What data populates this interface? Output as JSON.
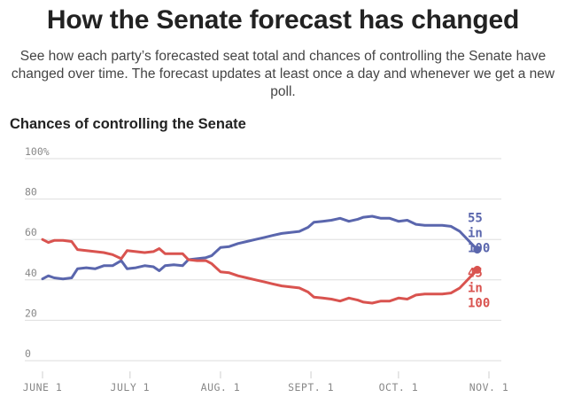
{
  "header": {
    "title": "How the Senate forecast has changed",
    "subtitle": "See how each party’s forecasted seat total and chances of controlling the Senate have changed over time. The forecast updates at least once a day and whenever we get a new poll."
  },
  "chart_data": {
    "type": "line",
    "title": "Chances of controlling the Senate",
    "xlabel": "",
    "ylabel": "",
    "ylim": [
      0,
      100
    ],
    "y_ticks": [
      "0",
      "20",
      "40",
      "60",
      "80",
      "100%"
    ],
    "y_tick_values": [
      0,
      20,
      40,
      60,
      80,
      100
    ],
    "x_ticks": [
      "JUNE 1",
      "JULY 1",
      "AUG. 1",
      "SEPT. 1",
      "OCT. 1",
      "NOV. 1"
    ],
    "x_tick_dates": [
      "2018-06-01",
      "2018-07-01",
      "2018-08-01",
      "2018-09-01",
      "2018-10-01",
      "2018-11-01"
    ],
    "grid": true,
    "series": [
      {
        "color": "#5a66ad",
        "end_label": [
          "55",
          "in",
          "100"
        ],
        "points": [
          [
            "2018-06-01",
            40.5
          ],
          [
            "2018-06-03",
            42
          ],
          [
            "2018-06-05",
            41
          ],
          [
            "2018-06-08",
            40.5
          ],
          [
            "2018-06-11",
            41
          ],
          [
            "2018-06-13",
            45.5
          ],
          [
            "2018-06-16",
            46
          ],
          [
            "2018-06-19",
            45.5
          ],
          [
            "2018-06-22",
            47
          ],
          [
            "2018-06-25",
            47
          ],
          [
            "2018-06-28",
            49.5
          ],
          [
            "2018-06-30",
            45.5
          ],
          [
            "2018-07-03",
            46
          ],
          [
            "2018-07-06",
            47
          ],
          [
            "2018-07-09",
            46.5
          ],
          [
            "2018-07-11",
            44.5
          ],
          [
            "2018-07-13",
            47
          ],
          [
            "2018-07-16",
            47.5
          ],
          [
            "2018-07-19",
            47
          ],
          [
            "2018-07-21",
            50
          ],
          [
            "2018-07-24",
            50.5
          ],
          [
            "2018-07-27",
            51
          ],
          [
            "2018-07-29",
            52
          ],
          [
            "2018-08-01",
            56
          ],
          [
            "2018-08-04",
            56.5
          ],
          [
            "2018-08-07",
            58
          ],
          [
            "2018-08-10",
            59
          ],
          [
            "2018-08-13",
            60
          ],
          [
            "2018-08-16",
            61
          ],
          [
            "2018-08-19",
            62
          ],
          [
            "2018-08-22",
            63
          ],
          [
            "2018-08-25",
            63.5
          ],
          [
            "2018-08-28",
            64
          ],
          [
            "2018-08-31",
            66
          ],
          [
            "2018-09-02",
            68.5
          ],
          [
            "2018-09-05",
            69
          ],
          [
            "2018-09-08",
            69.5
          ],
          [
            "2018-09-11",
            70.5
          ],
          [
            "2018-09-14",
            69
          ],
          [
            "2018-09-17",
            70
          ],
          [
            "2018-09-19",
            71
          ],
          [
            "2018-09-22",
            71.5
          ],
          [
            "2018-09-25",
            70.5
          ],
          [
            "2018-09-28",
            70.5
          ],
          [
            "2018-10-01",
            69
          ],
          [
            "2018-10-04",
            69.5
          ],
          [
            "2018-10-07",
            67.5
          ],
          [
            "2018-10-10",
            67
          ],
          [
            "2018-10-13",
            67
          ],
          [
            "2018-10-16",
            67
          ],
          [
            "2018-10-19",
            66.5
          ],
          [
            "2018-10-22",
            64
          ],
          [
            "2018-10-24",
            61
          ],
          [
            "2018-10-26",
            58
          ],
          [
            "2018-10-28",
            55
          ]
        ]
      },
      {
        "color": "#d9534f",
        "end_label": [
          "45",
          "in",
          "100"
        ],
        "points": [
          [
            "2018-06-01",
            60
          ],
          [
            "2018-06-03",
            58.5
          ],
          [
            "2018-06-05",
            59.5
          ],
          [
            "2018-06-08",
            59.5
          ],
          [
            "2018-06-11",
            59
          ],
          [
            "2018-06-13",
            55
          ],
          [
            "2018-06-16",
            54.5
          ],
          [
            "2018-06-19",
            54
          ],
          [
            "2018-06-22",
            53.5
          ],
          [
            "2018-06-25",
            52.5
          ],
          [
            "2018-06-28",
            50.5
          ],
          [
            "2018-06-30",
            54.5
          ],
          [
            "2018-07-03",
            54
          ],
          [
            "2018-07-06",
            53.5
          ],
          [
            "2018-07-09",
            54
          ],
          [
            "2018-07-11",
            55.5
          ],
          [
            "2018-07-13",
            53
          ],
          [
            "2018-07-16",
            53
          ],
          [
            "2018-07-19",
            53
          ],
          [
            "2018-07-21",
            50
          ],
          [
            "2018-07-24",
            49.5
          ],
          [
            "2018-07-27",
            49.5
          ],
          [
            "2018-07-29",
            48
          ],
          [
            "2018-08-01",
            44
          ],
          [
            "2018-08-04",
            43.5
          ],
          [
            "2018-08-07",
            42
          ],
          [
            "2018-08-10",
            41
          ],
          [
            "2018-08-13",
            40
          ],
          [
            "2018-08-16",
            39
          ],
          [
            "2018-08-19",
            38
          ],
          [
            "2018-08-22",
            37
          ],
          [
            "2018-08-25",
            36.5
          ],
          [
            "2018-08-28",
            36
          ],
          [
            "2018-08-31",
            34
          ],
          [
            "2018-09-02",
            31.5
          ],
          [
            "2018-09-05",
            31
          ],
          [
            "2018-09-08",
            30.5
          ],
          [
            "2018-09-11",
            29.5
          ],
          [
            "2018-09-14",
            31
          ],
          [
            "2018-09-17",
            30
          ],
          [
            "2018-09-19",
            29
          ],
          [
            "2018-09-22",
            28.5
          ],
          [
            "2018-09-25",
            29.5
          ],
          [
            "2018-09-28",
            29.5
          ],
          [
            "2018-10-01",
            31
          ],
          [
            "2018-10-04",
            30.5
          ],
          [
            "2018-10-07",
            32.5
          ],
          [
            "2018-10-10",
            33
          ],
          [
            "2018-10-13",
            33
          ],
          [
            "2018-10-16",
            33
          ],
          [
            "2018-10-19",
            33.5
          ],
          [
            "2018-10-22",
            36
          ],
          [
            "2018-10-24",
            39
          ],
          [
            "2018-10-26",
            42
          ],
          [
            "2018-10-28",
            45
          ]
        ]
      }
    ]
  }
}
